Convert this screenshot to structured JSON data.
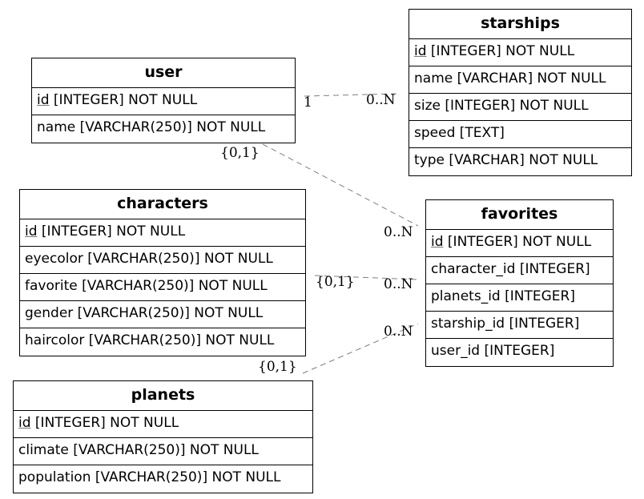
{
  "tables": {
    "user": {
      "name": "user",
      "cols": [
        "[INTEGER] NOT NULL",
        "name [VARCHAR(250)] NOT NULL"
      ],
      "pk": "id"
    },
    "starships": {
      "name": "starships",
      "pk": "id",
      "cols": [
        "[INTEGER] NOT NULL",
        "name [VARCHAR] NOT NULL",
        "size [INTEGER] NOT NULL",
        "speed [TEXT]",
        "type [VARCHAR] NOT NULL"
      ]
    },
    "characters": {
      "name": "characters",
      "pk": "id",
      "cols": [
        "[INTEGER] NOT NULL",
        "eyecolor [VARCHAR(250)] NOT NULL",
        "favorite [VARCHAR(250)] NOT NULL",
        "gender [VARCHAR(250)] NOT NULL",
        "haircolor [VARCHAR(250)] NOT NULL"
      ]
    },
    "favorites": {
      "name": "favorites",
      "pk": "id",
      "cols": [
        "[INTEGER] NOT NULL",
        "character_id [INTEGER]",
        "planets_id [INTEGER]",
        "starship_id [INTEGER]",
        "user_id [INTEGER]"
      ]
    },
    "planets": {
      "name": "planets",
      "pk": "id",
      "cols": [
        "[INTEGER] NOT NULL",
        "climate [VARCHAR(250)] NOT NULL",
        "population [VARCHAR(250)] NOT NULL"
      ]
    }
  },
  "cardinalities": {
    "user_starships_from": "1",
    "user_starships_to": "0..N",
    "user_favorites_from": "{0,1}",
    "user_favorites_to": "0..N",
    "characters_favorites_from": "{0,1}",
    "characters_favorites_to": "0..N",
    "planets_favorites_from": "{0,1}",
    "planets_favorites_to": "0..N"
  },
  "colors": {
    "edge": "#7f7f7f",
    "border": "#000000",
    "background": "#ffffff"
  }
}
